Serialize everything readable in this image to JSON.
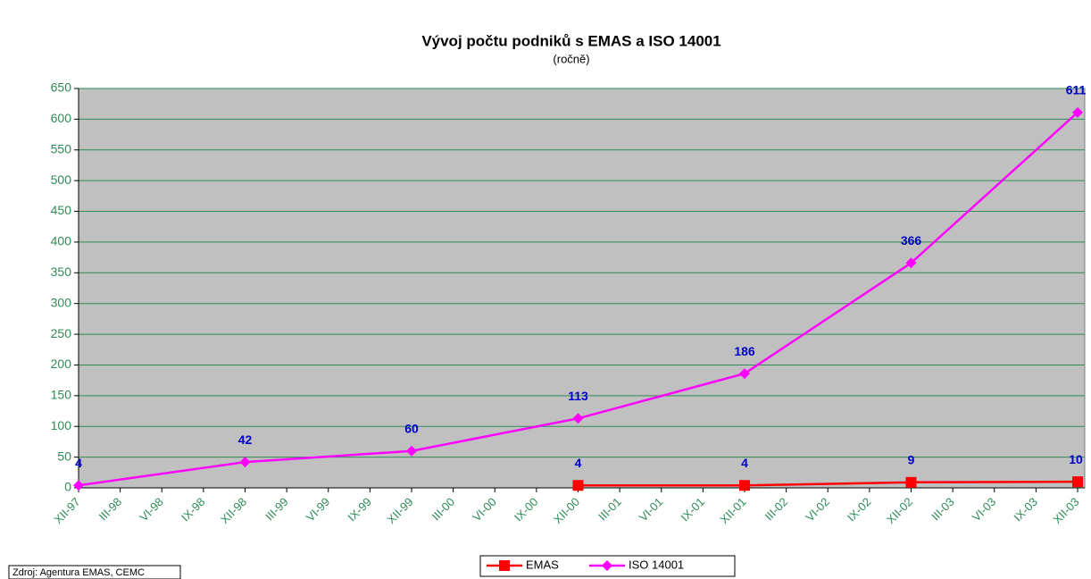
{
  "chart_data": {
    "type": "line",
    "title": "Vývoj počtu podniků s EMAS a ISO 14001",
    "subtitle": "(ročně)",
    "source": "Zdroj: Agentura EMAS, CEMC",
    "categories": [
      "XII-97",
      "III-98",
      "VI-98",
      "IX-98",
      "XII-98",
      "III-99",
      "VI-99",
      "IX-99",
      "XII-99",
      "III-00",
      "VI-00",
      "IX-00",
      "XII-00",
      "III-01",
      "VI-01",
      "IX-01",
      "XII-01",
      "III-02",
      "VI-02",
      "IX-02",
      "XII-02",
      "III-03",
      "VI-03",
      "IX-03",
      "XII-03"
    ],
    "series": [
      {
        "name": "EMAS",
        "color": "#ff0000",
        "marker": "square",
        "values": [
          null,
          null,
          null,
          null,
          null,
          null,
          null,
          null,
          null,
          null,
          null,
          null,
          4,
          null,
          null,
          null,
          4,
          null,
          null,
          null,
          9,
          null,
          null,
          null,
          10
        ]
      },
      {
        "name": "ISO 14001",
        "color": "#ff00ff",
        "marker": "diamond",
        "values": [
          4,
          null,
          null,
          null,
          42,
          null,
          null,
          null,
          60,
          null,
          null,
          null,
          113,
          null,
          null,
          null,
          186,
          null,
          null,
          null,
          366,
          null,
          null,
          null,
          611
        ]
      }
    ],
    "connect_gaps": true,
    "ylim": [
      0,
      650
    ],
    "yticks": [
      0,
      50,
      100,
      150,
      200,
      250,
      300,
      350,
      400,
      450,
      500,
      550,
      600,
      650
    ],
    "grid": true,
    "legend": "bottom",
    "plot_background": "#c0c0c0",
    "grid_color": "#2e8b57",
    "value_label_color": "#0000cc"
  }
}
